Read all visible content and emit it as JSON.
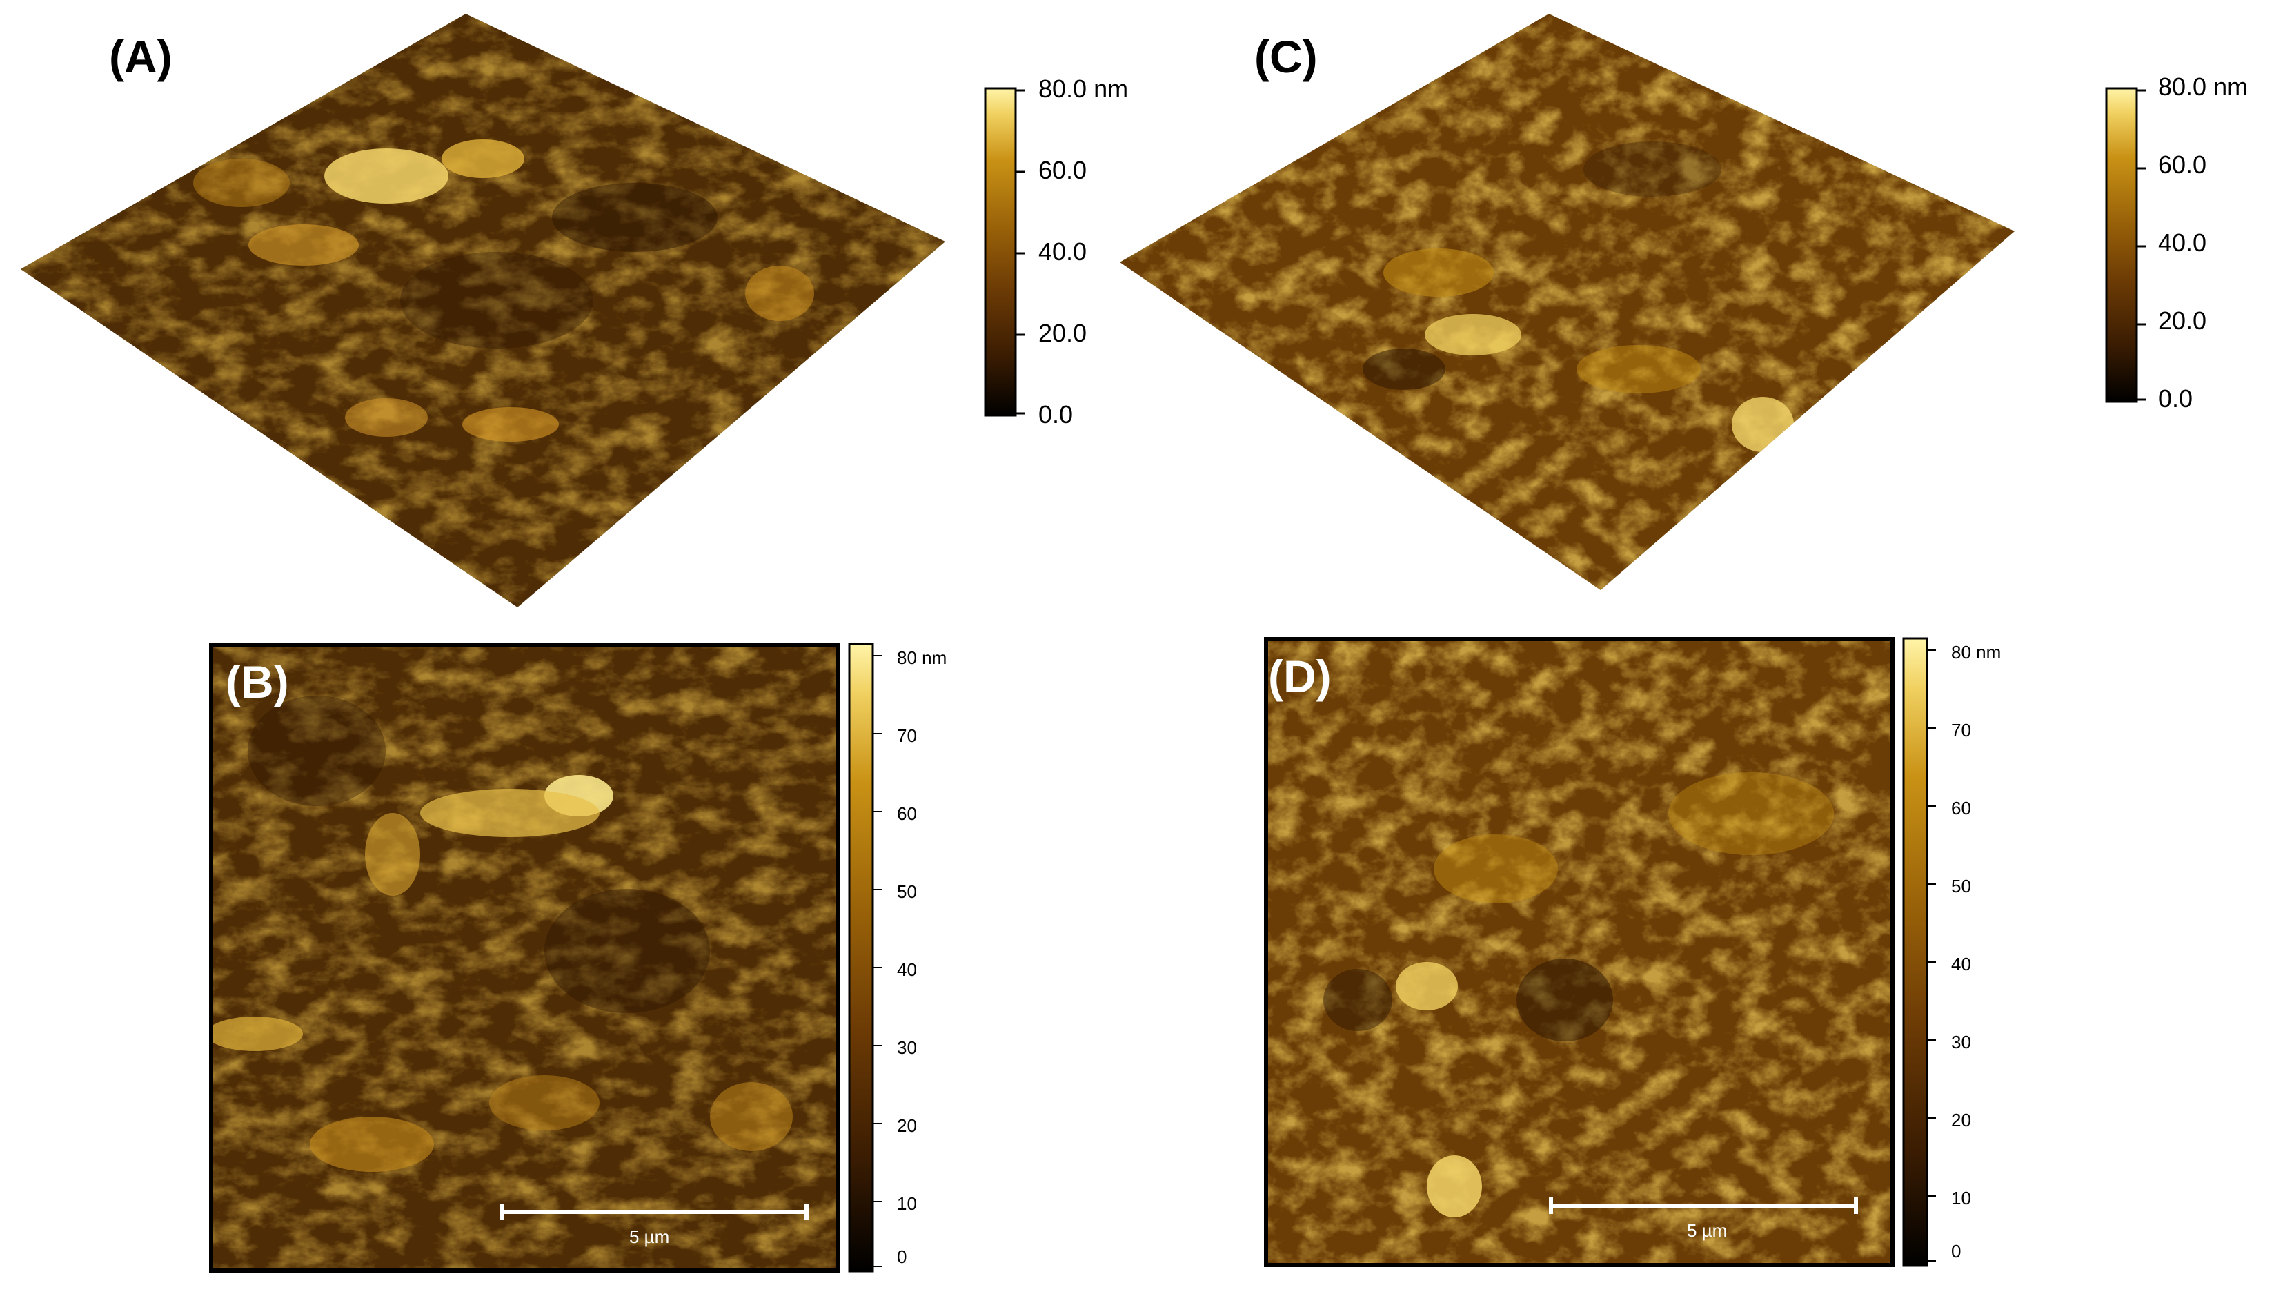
{
  "panels": [
    {
      "label": "(A)",
      "view": "3d"
    },
    {
      "label": "(B)",
      "view": "2d",
      "scalebar": "5 µm"
    },
    {
      "label": "(C)",
      "view": "3d"
    },
    {
      "label": "(D)",
      "view": "2d",
      "scalebar": "5 µm"
    }
  ],
  "colorbar_3d": {
    "ticks": [
      "80.0 nm",
      "60.0",
      "40.0",
      "20.0",
      "0.0"
    ]
  },
  "colorbar_2d": {
    "ticks": [
      "80 nm",
      "70",
      "60",
      "50",
      "40",
      "30",
      "20",
      "10",
      "0"
    ]
  },
  "colormap": [
    "#000000",
    "#3a1c02",
    "#6b3a05",
    "#9a6309",
    "#c99215",
    "#f0d060",
    "#fff4a8"
  ]
}
